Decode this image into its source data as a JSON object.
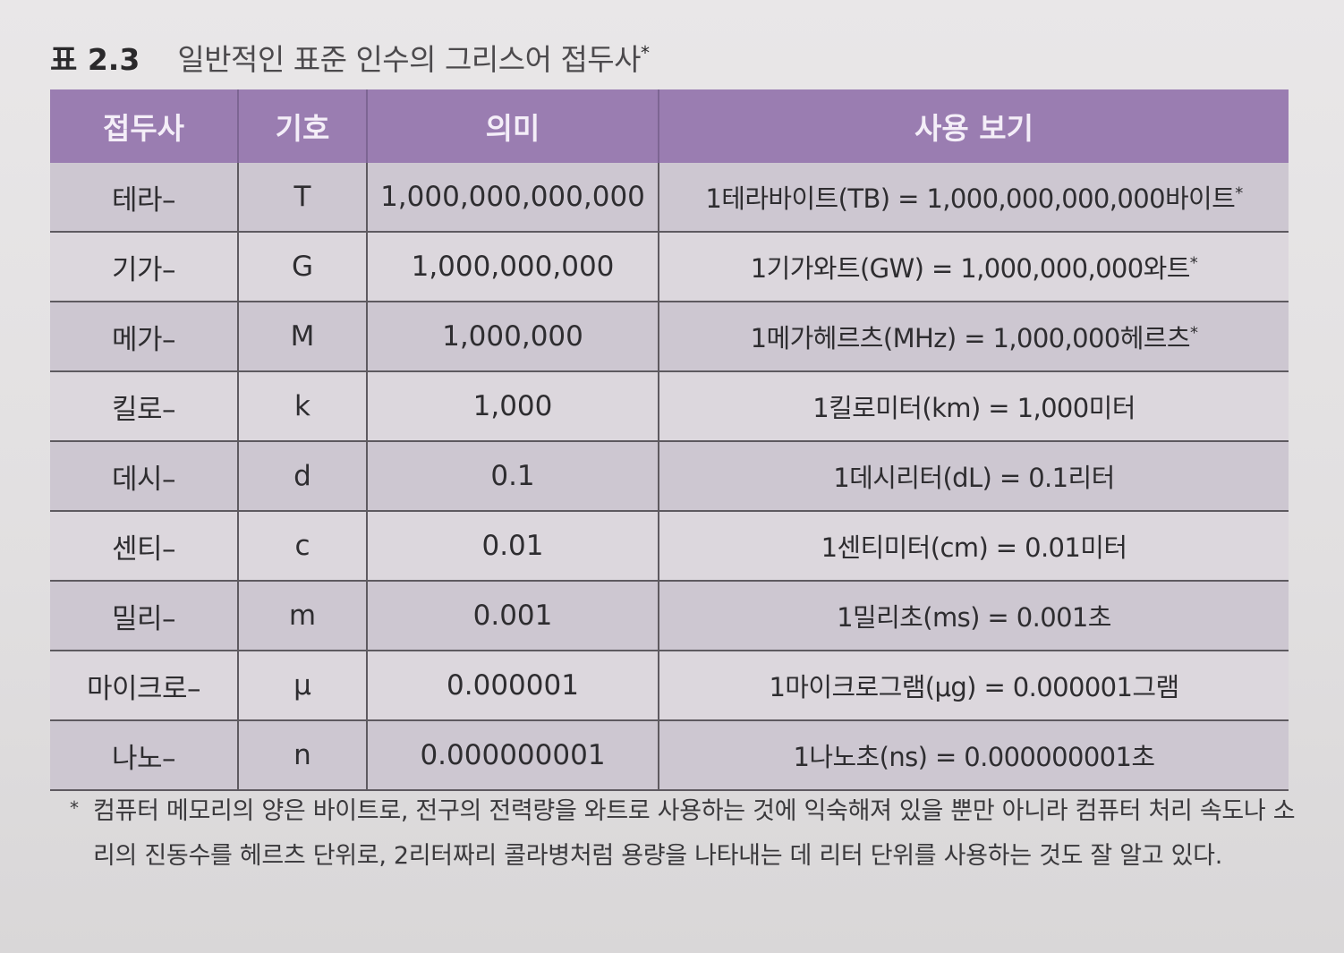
{
  "caption": {
    "number": "표 2.3",
    "title": "일반적인 표준 인수의 그리스어 접두사",
    "mark": "*"
  },
  "table": {
    "headers": [
      "접두사",
      "기호",
      "의미",
      "사용 보기"
    ],
    "rows": [
      {
        "prefix": "테라–",
        "symbol": "T",
        "meaning": "1,000,000,000,000",
        "example": "1테라바이트(TB) = 1,000,000,000,000바이트",
        "mark": "*"
      },
      {
        "prefix": "기가–",
        "symbol": "G",
        "meaning": "1,000,000,000",
        "example": "1기가와트(GW) = 1,000,000,000와트",
        "mark": "*"
      },
      {
        "prefix": "메가–",
        "symbol": "M",
        "meaning": "1,000,000",
        "example": "1메가헤르츠(MHz) = 1,000,000헤르츠",
        "mark": "*"
      },
      {
        "prefix": "킬로–",
        "symbol": "k",
        "meaning": "1,000",
        "example": "1킬로미터(km) = 1,000미터",
        "mark": ""
      },
      {
        "prefix": "데시–",
        "symbol": "d",
        "meaning": "0.1",
        "example": "1데시리터(dL) = 0.1리터",
        "mark": ""
      },
      {
        "prefix": "센티–",
        "symbol": "c",
        "meaning": "0.01",
        "example": "1센티미터(cm) = 0.01미터",
        "mark": ""
      },
      {
        "prefix": "밀리–",
        "symbol": "m",
        "meaning": "0.001",
        "example": "1밀리초(ms) = 0.001초",
        "mark": ""
      },
      {
        "prefix": "마이크로–",
        "symbol": "μ",
        "meaning": "0.000001",
        "example": "1마이크로그램(μg) = 0.000001그램",
        "mark": ""
      },
      {
        "prefix": "나노–",
        "symbol": "n",
        "meaning": "0.000000001",
        "example": "1나노초(ns) = 0.000000001초",
        "mark": ""
      }
    ]
  },
  "footnote": {
    "mark": "*",
    "text": "컴퓨터 메모리의 양은 바이트로, 전구의 전력량을 와트로 사용하는 것에 익숙해져 있을 뿐만 아니라 컴퓨터 처리 속도나 소리의 진동수를 헤르츠 단위로, 2리터짜리 콜라병처럼 용량을 나타내는 데 리터 단위를 사용하는 것도 잘 알고 있다."
  },
  "colors": {
    "header_bg": "#9a7db1",
    "row_odd_bg": "#cdc7d1",
    "row_even_bg": "#dcd7dd"
  }
}
